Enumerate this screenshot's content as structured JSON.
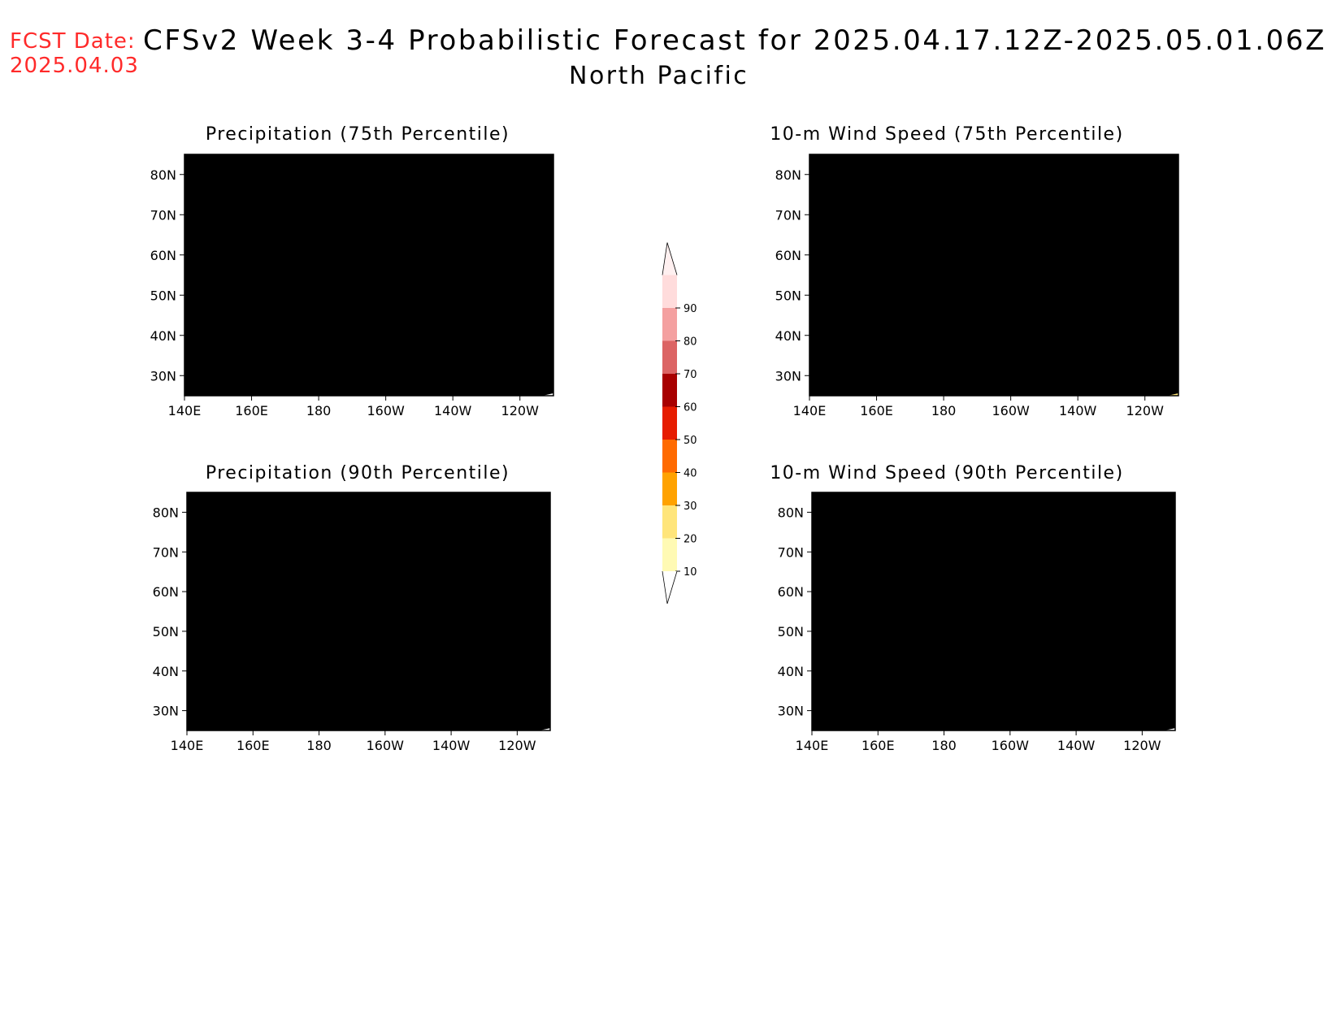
{
  "header": {
    "fcst_label": "FCST Date:",
    "fcst_date": "2025.04.03",
    "title": "CFSv2 Week 3-4 Probabilistic Forecast for 2025.04.17.12Z-2025.05.01.06Z",
    "subtitle": "North Pacific"
  },
  "panels": [
    {
      "title": "Precipitation (75th Percentile)"
    },
    {
      "title": "10-m Wind Speed (75th Percentile)"
    },
    {
      "title": "Precipitation (90th Percentile)"
    },
    {
      "title": "10-m Wind Speed (90th Percentile)"
    }
  ],
  "axes": {
    "lat_labels": [
      "80N",
      "70N",
      "60N",
      "50N",
      "40N",
      "30N"
    ],
    "lon_labels": [
      "140E",
      "160E",
      "180",
      "160W",
      "140W",
      "120W"
    ]
  },
  "colorbar": {
    "labels": [
      "10",
      "20",
      "30",
      "40",
      "50",
      "60",
      "70",
      "80",
      "90"
    ],
    "colors": [
      "#fffab4",
      "#ffe57a",
      "#ffa200",
      "#ff6a00",
      "#e61c00",
      "#a80000",
      "#dc6464",
      "#f4a0a0",
      "#ffdcdc"
    ]
  }
}
